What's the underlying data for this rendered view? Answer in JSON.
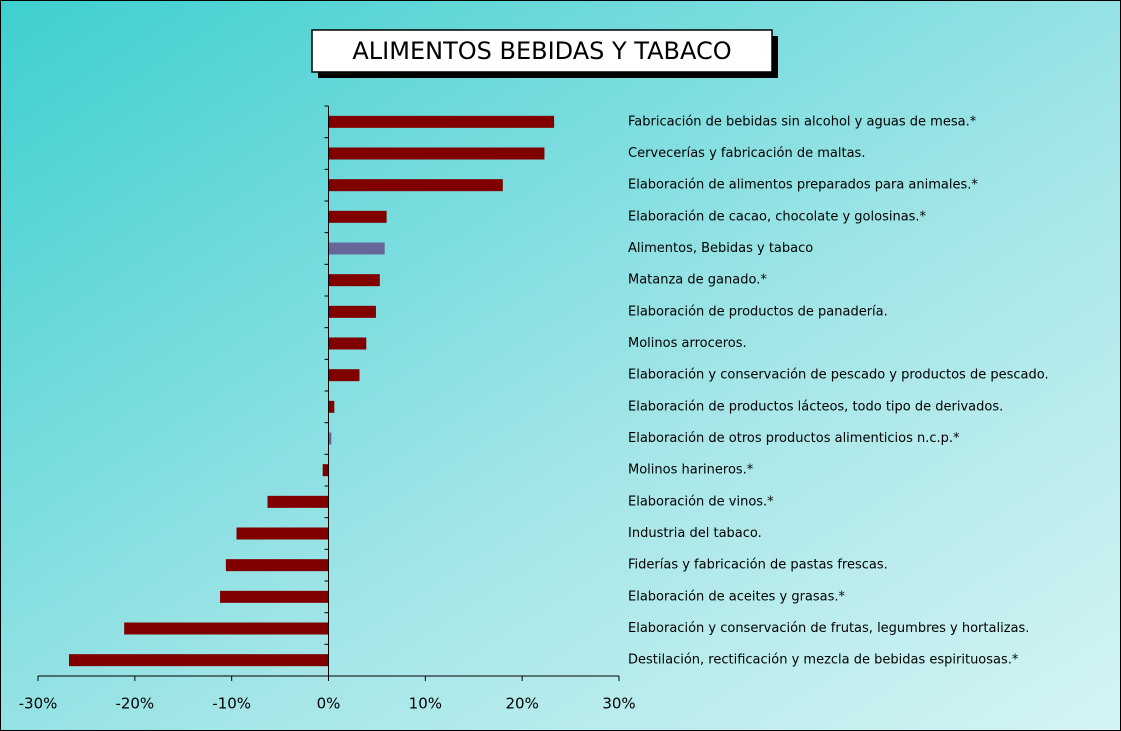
{
  "chart_data": {
    "type": "barh",
    "title": "ALIMENTOS BEBIDAS Y TABACO",
    "categories": [
      "Fabricación de bebidas sin alcohol y aguas de mesa.*",
      "Cervecerías y fabricación de maltas.",
      "Elaboración de alimentos preparados para animales.*",
      "Elaboración de cacao, chocolate y golosinas.*",
      "Alimentos, Bebidas y tabaco",
      "Matanza de ganado.*",
      "Elaboración de productos de panadería.",
      "Molinos arroceros.",
      "Elaboración y conservación de pescado y productos de pescado.",
      "Elaboración de productos lácteos, todo tipo de derivados.",
      "Elaboración de otros productos alimenticios n.c.p.*",
      "Molinos harineros.*",
      "Elaboración de vinos.*",
      "Industria del tabaco.",
      "Fiderías y fabricación de pastas frescas.",
      "Elaboración de aceites y grasas.*",
      "Elaboración y conservación de frutas, legumbres y hortalizas.",
      "Destilación, rectificación y mezcla de bebidas espirituosas.*"
    ],
    "values": [
      23.3,
      22.3,
      18.0,
      6.0,
      5.8,
      5.3,
      4.9,
      3.9,
      3.2,
      0.6,
      0.3,
      -0.6,
      -6.3,
      -9.5,
      -10.6,
      -11.2,
      -21.1,
      -26.8
    ],
    "colors": [
      "#800000",
      "#800000",
      "#800000",
      "#800000",
      "#666699",
      "#800000",
      "#800000",
      "#800000",
      "#800000",
      "#800000",
      "#666699",
      "#800000",
      "#800000",
      "#800000",
      "#800000",
      "#800000",
      "#800000",
      "#800000"
    ],
    "xlim": [
      -30,
      30
    ],
    "xticks": [
      {
        "value": -30,
        "label": "-30%"
      },
      {
        "value": -20,
        "label": "-20%"
      },
      {
        "value": -10,
        "label": "-10%"
      },
      {
        "value": 0,
        "label": "0%"
      },
      {
        "value": 10,
        "label": "10%"
      },
      {
        "value": 20,
        "label": "20%"
      },
      {
        "value": 30,
        "label": "30%"
      }
    ]
  }
}
